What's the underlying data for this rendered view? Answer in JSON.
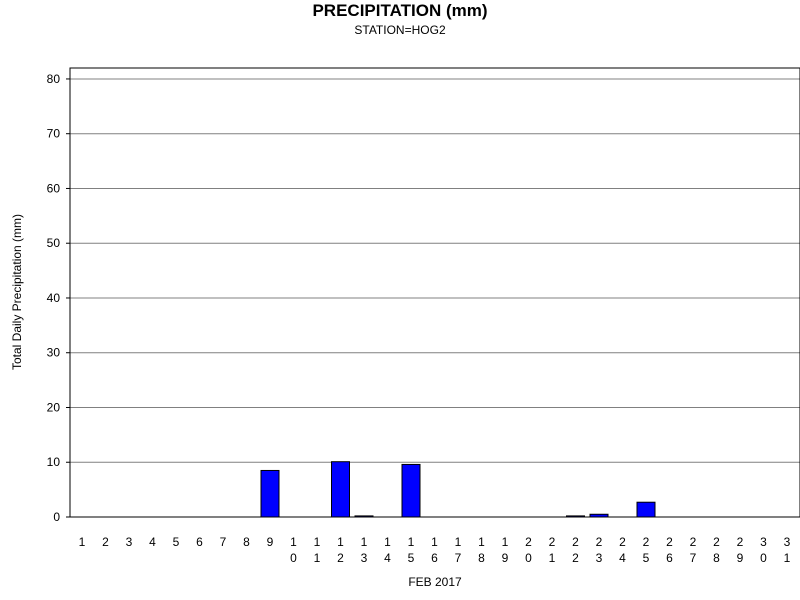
{
  "chart_data": {
    "type": "bar",
    "title": "PRECIPITATION (mm)",
    "subtitle": "STATION=HOG2",
    "xlabel": "FEB 2017",
    "ylabel": "Total Daily Precipitation (mm)",
    "ylim": [
      0,
      82
    ],
    "yticks": [
      0,
      10,
      20,
      30,
      40,
      50,
      60,
      70,
      80
    ],
    "grid": true,
    "categories": [
      "1",
      "2",
      "3",
      "4",
      "5",
      "6",
      "7",
      "8",
      "9",
      "10",
      "11",
      "12",
      "13",
      "14",
      "15",
      "16",
      "17",
      "18",
      "19",
      "20",
      "21",
      "22",
      "23",
      "24",
      "25",
      "26",
      "27",
      "28",
      "29",
      "30",
      "31"
    ],
    "values": [
      0,
      0,
      0,
      0,
      0,
      0,
      0,
      0,
      8.5,
      0,
      0,
      10.1,
      0.2,
      0,
      9.6,
      0,
      0,
      0,
      0,
      0,
      0,
      0.2,
      0.5,
      0,
      2.7,
      0,
      0,
      0,
      0,
      0,
      0
    ],
    "bar_color": "#0000ff"
  }
}
